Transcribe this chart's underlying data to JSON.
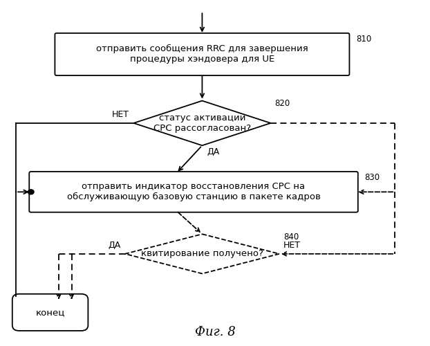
{
  "fig_width": 6.22,
  "fig_height": 5.0,
  "dpi": 100,
  "bg_color": "#ffffff",
  "title": "Фиг. 8",
  "box810_text": "отправить сообщения RRC для завершения\nпроцедуры хэндовера для UE",
  "box810_label": "810",
  "box820_text": "статус активации\nCPC рассогласован?",
  "box820_label": "820",
  "box830_text": "отправить индикатор восстановления CPC на\nобслуживающую базовую станцию в пакете кадров",
  "box830_label": "830",
  "box840_text": "квитирование получено?",
  "box840_label": "840",
  "end_text": "конец",
  "label_net": "НЕТ",
  "label_da": "ДА",
  "lw_solid": 1.3,
  "lw_dashed": 1.3,
  "fontsize_text": 9.5,
  "fontsize_label": 8.5,
  "fontsize_title": 13
}
